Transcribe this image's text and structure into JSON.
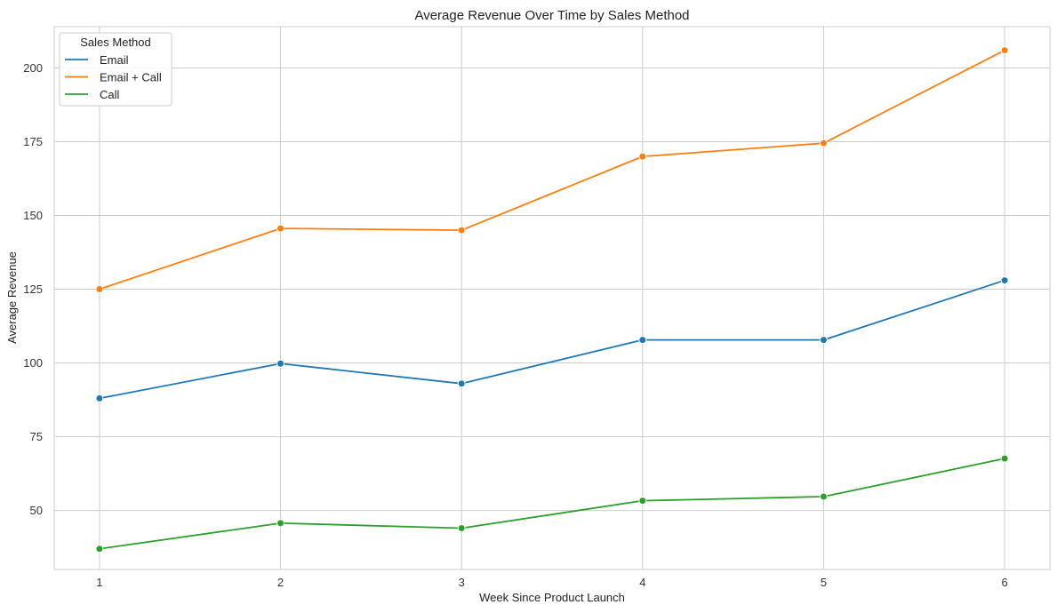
{
  "chart_data": {
    "type": "line",
    "title": "Average Revenue Over Time by Sales Method",
    "xlabel": "Week Since Product Launch",
    "ylabel": "Average Revenue",
    "x": [
      1,
      2,
      3,
      4,
      5,
      6
    ],
    "xlim": [
      0.75,
      6.25
    ],
    "ylim": [
      30,
      214
    ],
    "yticks": [
      50,
      75,
      100,
      125,
      150,
      175,
      200
    ],
    "grid": true,
    "markers": true,
    "legend": {
      "title": "Sales Method",
      "position": "top-left"
    },
    "series": [
      {
        "name": "Email",
        "color": "#1f77b4",
        "values": [
          88.0,
          99.8,
          93.0,
          107.8,
          107.8,
          128.0
        ]
      },
      {
        "name": "Email + Call",
        "color": "#ff7f0e",
        "values": [
          125.0,
          145.6,
          145.0,
          170.0,
          174.5,
          206.0
        ]
      },
      {
        "name": "Call",
        "color": "#2ca02c",
        "values": [
          37.0,
          45.7,
          44.0,
          53.3,
          54.7,
          67.6
        ]
      }
    ]
  }
}
